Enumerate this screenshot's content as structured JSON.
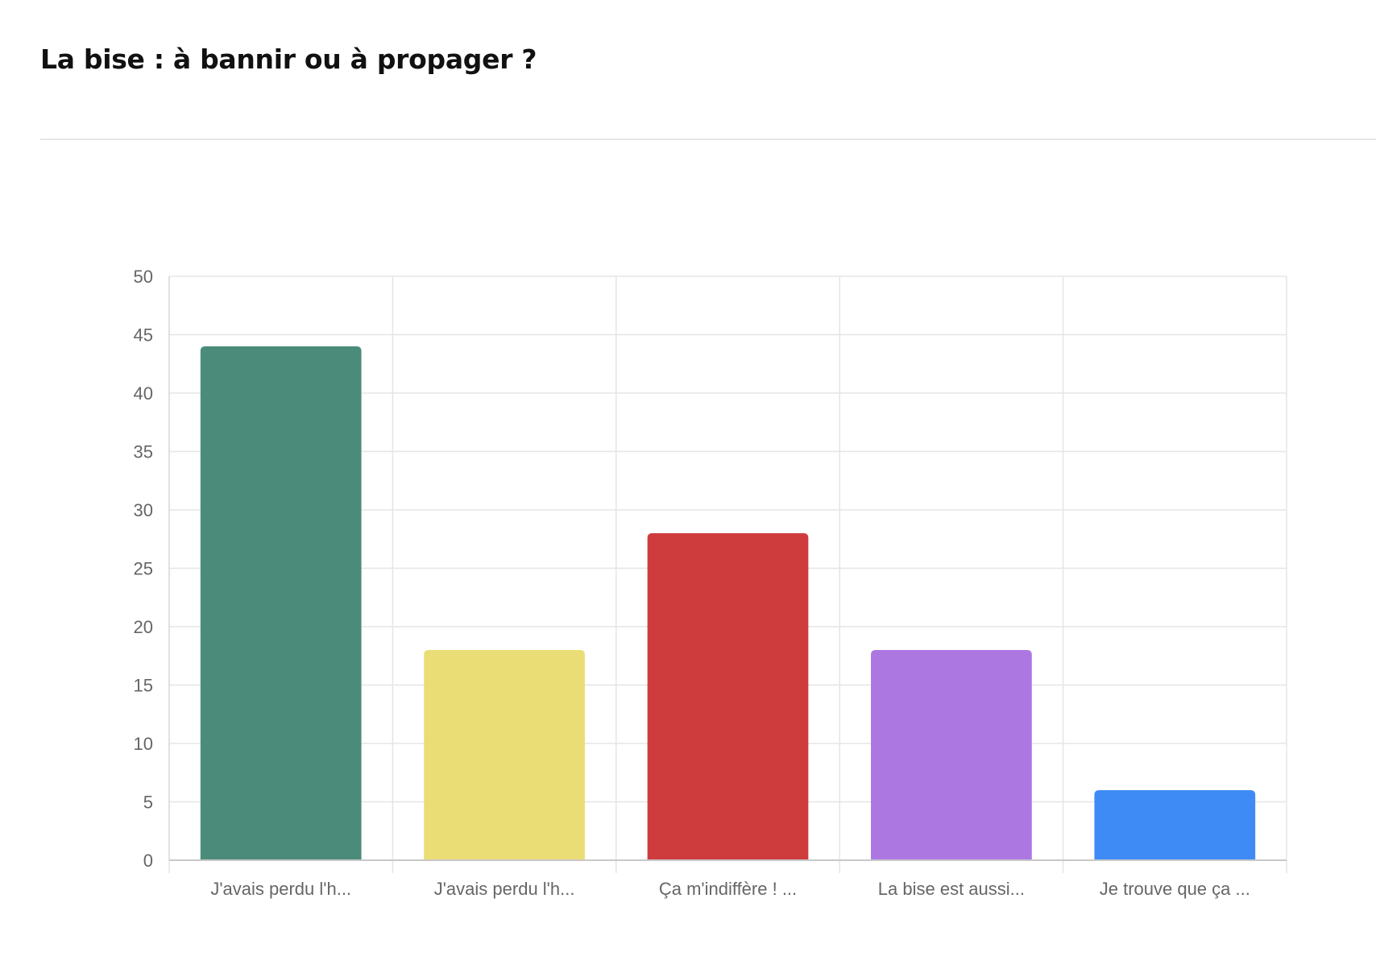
{
  "page": {
    "title": "La bise : à bannir ou à propager ?"
  },
  "chart_data": {
    "type": "bar",
    "title": "La bise : à bannir ou à propager ?",
    "xlabel": "",
    "ylabel": "",
    "categories": [
      "J'avais perdu l'h...",
      "J'avais perdu l'h...",
      "Ça m'indiffère ! ...",
      "La bise est aussi...",
      "Je trouve que ça ..."
    ],
    "values": [
      44,
      18,
      28,
      18,
      6
    ],
    "colors": [
      "#4a8c79",
      "#ebdd76",
      "#cf3c3e",
      "#ad77e2",
      "#3f8bf5"
    ],
    "ylim": [
      0,
      50
    ],
    "yticks": [
      0,
      5,
      10,
      15,
      20,
      25,
      30,
      35,
      40,
      45,
      50
    ],
    "grid": true,
    "legend": "none"
  }
}
